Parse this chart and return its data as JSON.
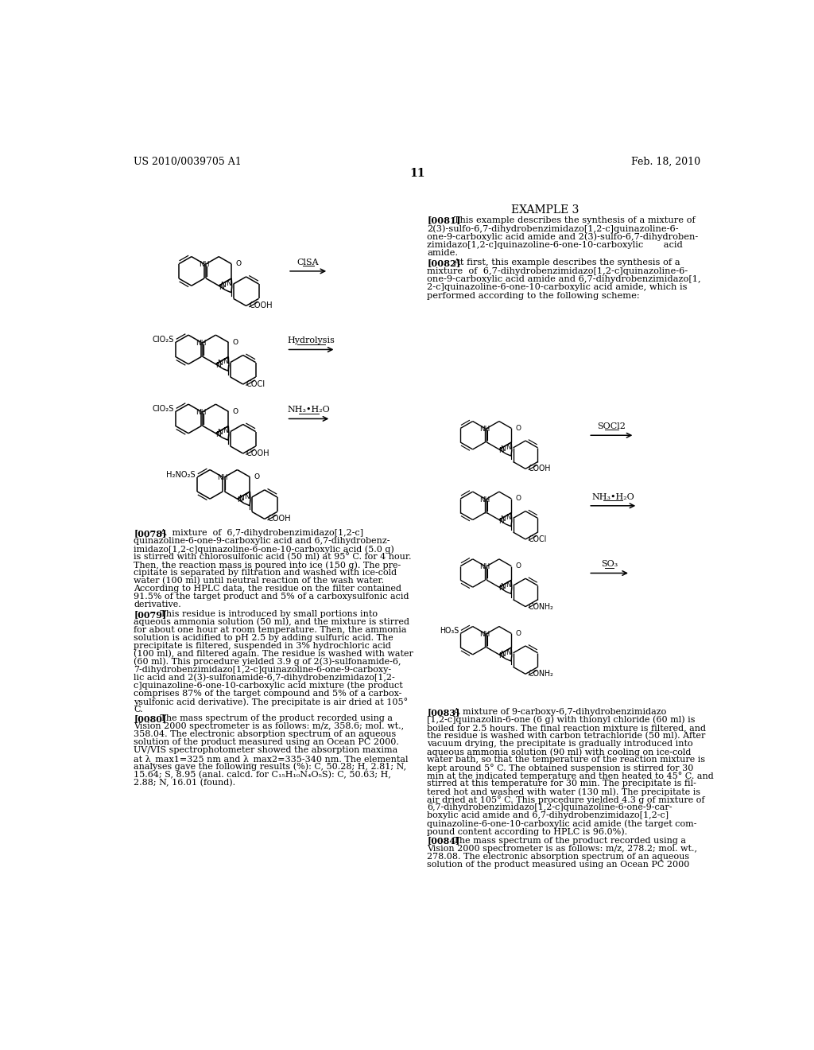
{
  "bg_color": "#ffffff",
  "header_left": "US 2010/0039705 A1",
  "header_right": "Feb. 18, 2010",
  "page_number": "11",
  "example_title": "EXAMPLE 3",
  "p0081_lines": [
    "[0081]   This example describes the synthesis of a mixture of",
    "2(3)-sulfo-6,7-dihydrobenzimidazo[1,2-c]quinazoline-6-",
    "one-9-carboxylic acid amide and 2(3)-sulfo-6,7-dihydroben-",
    "zimidazo[1,2-c]quinazoline-6-one-10-carboxylic       acid",
    "amide."
  ],
  "p0082_lines": [
    "[0082]   At first, this example describes the synthesis of a",
    "mixture  of  6,7-dihydrobenzimidazo[1,2-c]quinazoline-6-",
    "one-9-carboxylic acid amide and 6,7-dihydrobenzimidazo[1,",
    "2-c]quinazoline-6-one-10-carboxylic acid amide, which is",
    "performed according to the following scheme:"
  ],
  "p0078_lines": [
    "[0078]   A  mixture  of  6,7-dihydrobenzimidazo[1,2-c]",
    "quinazoline-6-one-9-carboxylic acid and 6,7-dihydrobenz-",
    "imidazo[1,2-c]quinazoline-6-one-10-carboxylic acid (5.0 g)",
    "is stirred with chlorosulfonic acid (50 ml) at 95° C. for 4 hour.",
    "Then, the reaction mass is poured into ice (150 g). The pre-",
    "cipitate is separated by filtration and washed with ice-cold",
    "water (100 ml) until neutral reaction of the wash water.",
    "According to HPLC data, the residue on the filter contained",
    "91.5% of the target product and 5% of a carboxysulfonic acid",
    "derivative."
  ],
  "p0079_lines": [
    "[0079]   This residue is introduced by small portions into",
    "aqueous ammonia solution (50 ml), and the mixture is stirred",
    "for about one hour at room temperature. Then, the ammonia",
    "solution is acidified to pH 2.5 by adding sulfuric acid. The",
    "precipitate is filtered, suspended in 3% hydrochloric acid",
    "(100 ml), and filtered again. The residue is washed with water",
    "(60 ml). This procedure yielded 3.9 g of 2(3)-sulfonamide-6,",
    "7-dihydrobenzimidazo[1,2-c]quinazoline-6-one-9-carboxy-",
    "lic acid and 2(3)-sulfonamide-6,7-dihydrobenzimidazo[1,2-",
    "c]quinazoline-6-one-10-carboxylic acid mixture (the product",
    "comprises 87% of the target compound and 5% of a carbox-",
    "ysulfonic acid derivative). The precipitate is air dried at 105°",
    "C."
  ],
  "p0080_lines": [
    "[0080]   The mass spectrum of the product recorded using a",
    "Vision 2000 spectrometer is as follows: m/z, 358.6; mol. wt.,",
    "358.04. The electronic absorption spectrum of an aqueous",
    "solution of the product measured using an Ocean PC 2000.",
    "UV/VIS spectrophotometer showed the absorption maxima",
    "at λ_max1=325 nm and λ_max2=335-340 nm. The elemental",
    "analyses gave the following results (%): C, 50.28; H, 2.81; N,",
    "15.64; S, 8.95 (anal. calcd. for C₁₅H₁₀N₄O₅S): C, 50.63; H,",
    "2.88; N, 16.01 (found)."
  ],
  "p0083_lines": [
    "[0083]   A mixture of 9-carboxy-6,7-dihydrobenzimidazo",
    "[1,2-c]quinazolin-6-one (6 g) with thionyl chloride (60 ml) is",
    "boiled for 2.5 hours. The final reaction mixture is filtered, and",
    "the residue is washed with carbon tetrachloride (50 ml). After",
    "vacuum drying, the precipitate is gradually introduced into",
    "aqueous ammonia solution (90 ml) with cooling on ice-cold",
    "water bath, so that the temperature of the reaction mixture is",
    "kept around 5° C. The obtained suspension is stirred for 30",
    "min at the indicated temperature and then heated to 45° C. and",
    "stirred at this temperature for 30 min. The precipitate is fil-",
    "tered hot and washed with water (130 ml). The precipitate is",
    "air dried at 105° C. This procedure yielded 4.3 g of mixture of",
    "6,7-dihydrobenzimidazo[1,2-c]quinazoline-6-one-9-car-",
    "boxylic acid amide and 6,7-dihydrobenzimidazo[1,2-c]",
    "quinazoline-6-one-10-carboxylic acid amide (the target com-",
    "pound content according to HPLC is 96.0%)."
  ],
  "p0084_lines": [
    "[0084]   The mass spectrum of the product recorded using a",
    "Vision 2000 spectrometer is as follows: m/z, 278.2; mol. wt.,",
    "278.08. The electronic absorption spectrum of an aqueous",
    "solution of the product measured using an Ocean PC 2000"
  ]
}
